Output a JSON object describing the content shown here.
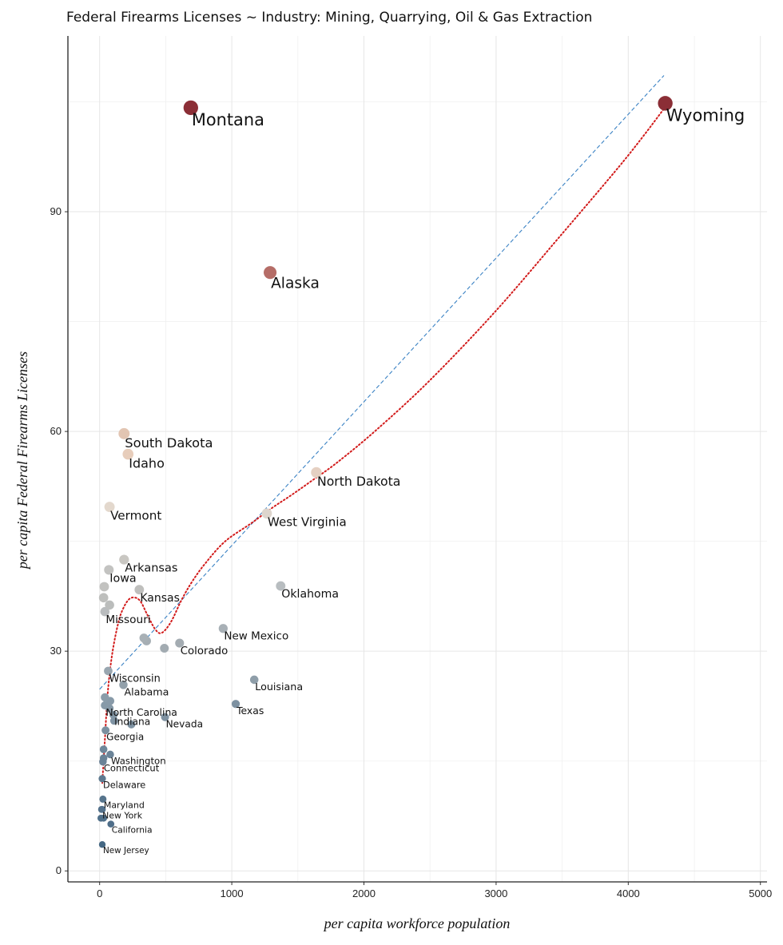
{
  "chart_data": {
    "type": "scatter",
    "title": "Federal Firearms Licenses ~ Industry: Mining, Quarrying, Oil & Gas Extraction",
    "xlabel": "per capita workforce population",
    "ylabel": "per capita Federal Firearms Licenses",
    "xlim": [
      -240,
      5050
    ],
    "ylim": [
      -1.5,
      114
    ],
    "xticks": [
      0,
      1000,
      2000,
      3000,
      4000,
      5000
    ],
    "yticks": [
      0,
      30,
      60,
      90
    ],
    "grid": true,
    "points": [
      {
        "label": "Wyoming",
        "x": 4280,
        "y": 104.8,
        "color": "#8b2e36"
      },
      {
        "label": "Montana",
        "x": 690,
        "y": 104.2,
        "color": "#8b2e36"
      },
      {
        "label": "Alaska",
        "x": 1290,
        "y": 81.7,
        "color": "#b56d67"
      },
      {
        "label": "South Dakota",
        "x": 185,
        "y": 59.7,
        "color": "#e2c5b2"
      },
      {
        "label": "Idaho",
        "x": 215,
        "y": 56.9,
        "color": "#e7cdbb"
      },
      {
        "label": "North Dakota",
        "x": 1640,
        "y": 54.4,
        "color": "#e5d0c2"
      },
      {
        "label": "Vermont",
        "x": 75,
        "y": 49.7,
        "color": "#e3d8cd"
      },
      {
        "label": "West Virginia",
        "x": 1265,
        "y": 48.8,
        "color": "#ddd5cd"
      },
      {
        "label": "Arkansas",
        "x": 185,
        "y": 42.5,
        "color": "#c9c7c2"
      },
      {
        "label": "Iowa",
        "x": 70,
        "y": 41.1,
        "color": "#c3c3c1"
      },
      {
        "label": "Oklahoma",
        "x": 1370,
        "y": 38.9,
        "color": "#b8bdc0"
      },
      {
        "label": "Kansas",
        "x": 300,
        "y": 38.4,
        "color": "#bfbfbd"
      },
      {
        "label": "Missouri",
        "x": 40,
        "y": 35.4,
        "color": "#b9bcbe"
      },
      {
        "label": "New Mexico",
        "x": 935,
        "y": 33.1,
        "color": "#a8b0b6"
      },
      {
        "label": "Colorado",
        "x": 605,
        "y": 31.1,
        "color": "#a4acb2"
      },
      {
        "label": "Wisconsin",
        "x": 65,
        "y": 27.3,
        "color": "#99a6b0"
      },
      {
        "label": "Louisiana",
        "x": 1170,
        "y": 26.1,
        "color": "#8f9ea9"
      },
      {
        "label": "Alabama",
        "x": 180,
        "y": 25.4,
        "color": "#92a0aa"
      },
      {
        "label": "North Carolina",
        "x": 40,
        "y": 22.6,
        "color": "#879aa8"
      },
      {
        "label": "Texas",
        "x": 1030,
        "y": 22.8,
        "color": "#7d91a1"
      },
      {
        "label": "Indiana",
        "x": 105,
        "y": 21.3,
        "color": "#8396a5"
      },
      {
        "label": "Nevada",
        "x": 495,
        "y": 21.0,
        "color": "#7f92a2"
      },
      {
        "label": "Georgia",
        "x": 45,
        "y": 19.2,
        "color": "#7c90a0"
      },
      {
        "label": "Washington",
        "x": 80,
        "y": 15.9,
        "color": "#6c8498"
      },
      {
        "label": "Connecticut",
        "x": 25,
        "y": 14.9,
        "color": "#6c8397"
      },
      {
        "label": "Delaware",
        "x": 20,
        "y": 12.6,
        "color": "#5f7a90"
      },
      {
        "label": "Maryland",
        "x": 25,
        "y": 9.8,
        "color": "#56748c"
      },
      {
        "label": "New York",
        "x": 15,
        "y": 8.4,
        "color": "#52708a"
      },
      {
        "label": "California",
        "x": 85,
        "y": 6.4,
        "color": "#4f6e89"
      },
      {
        "label": "New Jersey",
        "x": 20,
        "y": 3.6,
        "color": "#456884"
      },
      {
        "label": "",
        "x": 35,
        "y": 38.8,
        "color": "#c2c2c0"
      },
      {
        "label": "",
        "x": 30,
        "y": 37.3,
        "color": "#bebfbd"
      },
      {
        "label": "",
        "x": 75,
        "y": 36.3,
        "color": "#bbbdbc"
      },
      {
        "label": "",
        "x": 335,
        "y": 31.8,
        "color": "#a8b0b5"
      },
      {
        "label": "",
        "x": 355,
        "y": 31.4,
        "color": "#a6aeb4"
      },
      {
        "label": "",
        "x": 490,
        "y": 30.4,
        "color": "#a2abb1"
      },
      {
        "label": "",
        "x": 40,
        "y": 23.7,
        "color": "#8a9ca9"
      },
      {
        "label": "",
        "x": 80,
        "y": 23.2,
        "color": "#889aa8"
      },
      {
        "label": "",
        "x": 75,
        "y": 22.2,
        "color": "#8598a6"
      },
      {
        "label": "",
        "x": 110,
        "y": 20.5,
        "color": "#8094a4"
      },
      {
        "label": "",
        "x": 240,
        "y": 20.0,
        "color": "#7f93a3"
      },
      {
        "label": "",
        "x": 30,
        "y": 16.6,
        "color": "#6f879a"
      },
      {
        "label": "",
        "x": 30,
        "y": 15.4,
        "color": "#6a8296"
      },
      {
        "label": "",
        "x": 20,
        "y": 8.4,
        "color": "#53718b"
      },
      {
        "label": "",
        "x": 10,
        "y": 7.2,
        "color": "#50708a"
      },
      {
        "label": "",
        "x": 30,
        "y": 7.2,
        "color": "#4f6f89"
      }
    ],
    "fit_linear": {
      "x": [
        0,
        4270
      ],
      "y": [
        24.8,
        108.6
      ],
      "color": "#3a82c4",
      "style": "dashed"
    },
    "fit_loess": {
      "color": "#d21b1b",
      "style": "dotted",
      "x": [
        20,
        40,
        60,
        90,
        130,
        170,
        230,
        300,
        360,
        420,
        470,
        540,
        620,
        700,
        800,
        950,
        1150,
        1300,
        1450,
        1600,
        1800,
        2100,
        2500,
        3000,
        3500,
        3900,
        4100,
        4280
      ],
      "y": [
        12,
        18,
        24,
        29,
        33,
        35.5,
        37.2,
        37,
        35,
        33,
        32.5,
        34,
        37,
        39.5,
        42,
        45,
        47.5,
        49.5,
        51.3,
        53.2,
        55.8,
        60.3,
        67,
        76.5,
        87,
        95.5,
        100,
        104.3
      ]
    }
  }
}
